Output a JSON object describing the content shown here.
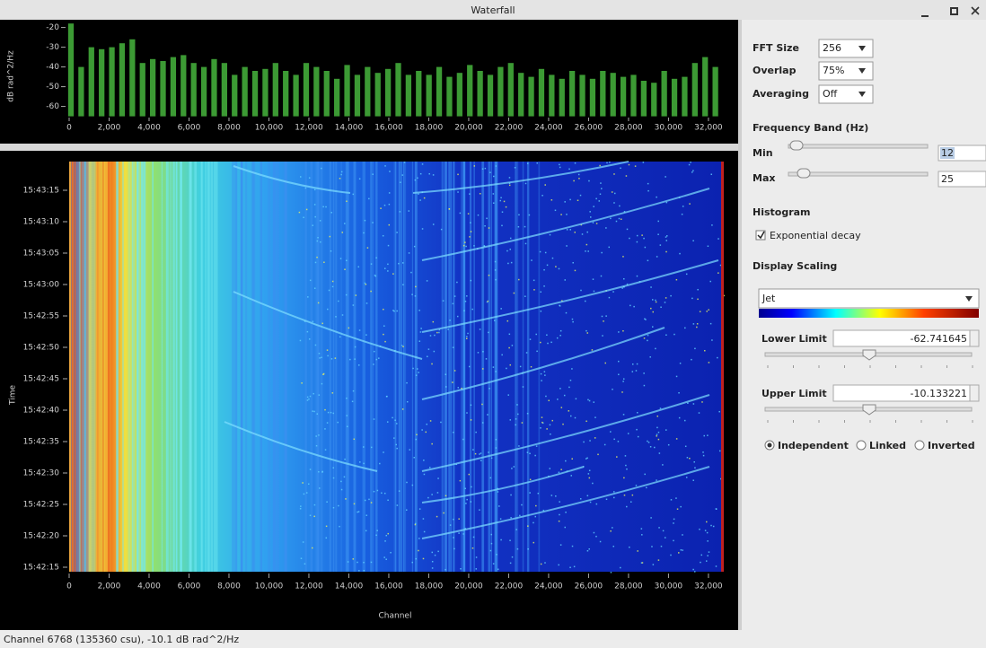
{
  "window": {
    "title": "Waterfall"
  },
  "spectrum": {
    "type": "bar",
    "y_label": "dB rad^2/Hz",
    "color": "#3c9a34",
    "x": [
      0,
      512,
      1024,
      1536,
      2048,
      2560,
      3072,
      3584,
      4096,
      4608,
      5120,
      5632,
      6144,
      6656,
      7168,
      7680,
      8192,
      8704,
      9216,
      9728,
      10240,
      10752,
      11264,
      11776,
      12288,
      12800,
      13312,
      13824,
      14336,
      14848,
      15360,
      15872,
      16384,
      16896,
      17408,
      17920,
      18432,
      18944,
      19456,
      19968,
      20480,
      20992,
      21504,
      22016,
      22528,
      23040,
      23552,
      24064,
      24576,
      25088,
      25600,
      26112,
      26624,
      27136,
      27648,
      28160,
      28672,
      29184,
      29696,
      30208,
      30720,
      31232,
      31744,
      32256
    ],
    "values": [
      -18,
      -40,
      -30,
      -31,
      -30,
      -28,
      -26,
      -38,
      -36,
      -37,
      -35,
      -34,
      -38,
      -40,
      -36,
      -38,
      -44,
      -40,
      -42,
      -41,
      -38,
      -42,
      -44,
      -38,
      -40,
      -42,
      -46,
      -39,
      -44,
      -40,
      -43,
      -41,
      -38,
      -44,
      -42,
      -44,
      -40,
      -45,
      -43,
      -39,
      -42,
      -44,
      -40,
      -38,
      -43,
      -45,
      -41,
      -44,
      -46,
      -42,
      -44,
      -46,
      -42,
      -43,
      -45,
      -44,
      -47,
      -48,
      -42,
      -46,
      -45,
      -38,
      -35,
      -40
    ],
    "xlim": [
      0,
      32768
    ],
    "ylim": [
      -65,
      -17
    ],
    "yticks": [
      -20,
      -30,
      -40,
      -50,
      -60
    ],
    "xticks": [
      0,
      {
        "value": 2000,
        "label": "2,000"
      },
      {
        "value": 4000,
        "label": "4,000"
      },
      {
        "value": 6000,
        "label": "6,000"
      },
      {
        "value": 8000,
        "label": "8,000"
      },
      {
        "value": 10000,
        "label": "10,000"
      },
      {
        "value": 12000,
        "label": "12,000"
      },
      {
        "value": 14000,
        "label": "14,000"
      },
      {
        "value": 16000,
        "label": "16,000"
      },
      {
        "value": 18000,
        "label": "18,000"
      },
      {
        "value": 20000,
        "label": "20,000"
      },
      {
        "value": 22000,
        "label": "22,000"
      },
      {
        "value": 24000,
        "label": "24,000"
      },
      {
        "value": 26000,
        "label": "26,000"
      },
      {
        "value": 28000,
        "label": "28,000"
      },
      {
        "value": 30000,
        "label": "30,000"
      },
      {
        "value": 32000,
        "label": "32,000"
      }
    ]
  },
  "waterfall": {
    "type": "heatmap",
    "x_label": "Channel",
    "y_label": "Time",
    "xlim": [
      0,
      32768
    ],
    "xticks": [
      0,
      {
        "value": 2000,
        "label": "2,000"
      },
      {
        "value": 4000,
        "label": "4,000"
      },
      {
        "value": 6000,
        "label": "6,000"
      },
      {
        "value": 8000,
        "label": "8,000"
      },
      {
        "value": 10000,
        "label": "10,000"
      },
      {
        "value": 12000,
        "label": "12,000"
      },
      {
        "value": 14000,
        "label": "14,000"
      },
      {
        "value": 16000,
        "label": "16,000"
      },
      {
        "value": 18000,
        "label": "18,000"
      },
      {
        "value": 20000,
        "label": "20,000"
      },
      {
        "value": 22000,
        "label": "22,000"
      },
      {
        "value": 24000,
        "label": "24,000"
      },
      {
        "value": 26000,
        "label": "26,000"
      },
      {
        "value": 28000,
        "label": "28,000"
      },
      {
        "value": 30000,
        "label": "30,000"
      },
      {
        "value": 32000,
        "label": "32,000"
      }
    ],
    "yticks": [
      "15:43:15",
      "15:43:10",
      "15:43:05",
      "15:43:00",
      "15:42:55",
      "15:42:50",
      "15:42:45",
      "15:42:40",
      "15:42:35",
      "15:42:30",
      "15:42:25",
      "15:42:20",
      "15:42:15"
    ]
  },
  "controls": {
    "fft_size": {
      "label": "FFT Size",
      "value": "256"
    },
    "overlap": {
      "label": "Overlap",
      "value": "75%"
    },
    "averaging": {
      "label": "Averaging",
      "value": "Off"
    },
    "frequency_band": {
      "title": "Frequency Band (Hz)",
      "min_label": "Min",
      "min": "12",
      "max_label": "Max",
      "max": "25"
    },
    "histogram": {
      "title": "Histogram",
      "checkbox": "Exponential decay"
    },
    "display_scaling": {
      "title": "Display Scaling",
      "colormap": "Jet",
      "lower_label": "Lower Limit",
      "lower": "-62.741645",
      "upper_label": "Upper Limit",
      "upper": "-10.133221",
      "modes": [
        "Independent",
        "Linked",
        "Inverted"
      ]
    }
  },
  "status": "Channel 6768 (135360 csu), -10.1 dB rad^2/Hz"
}
